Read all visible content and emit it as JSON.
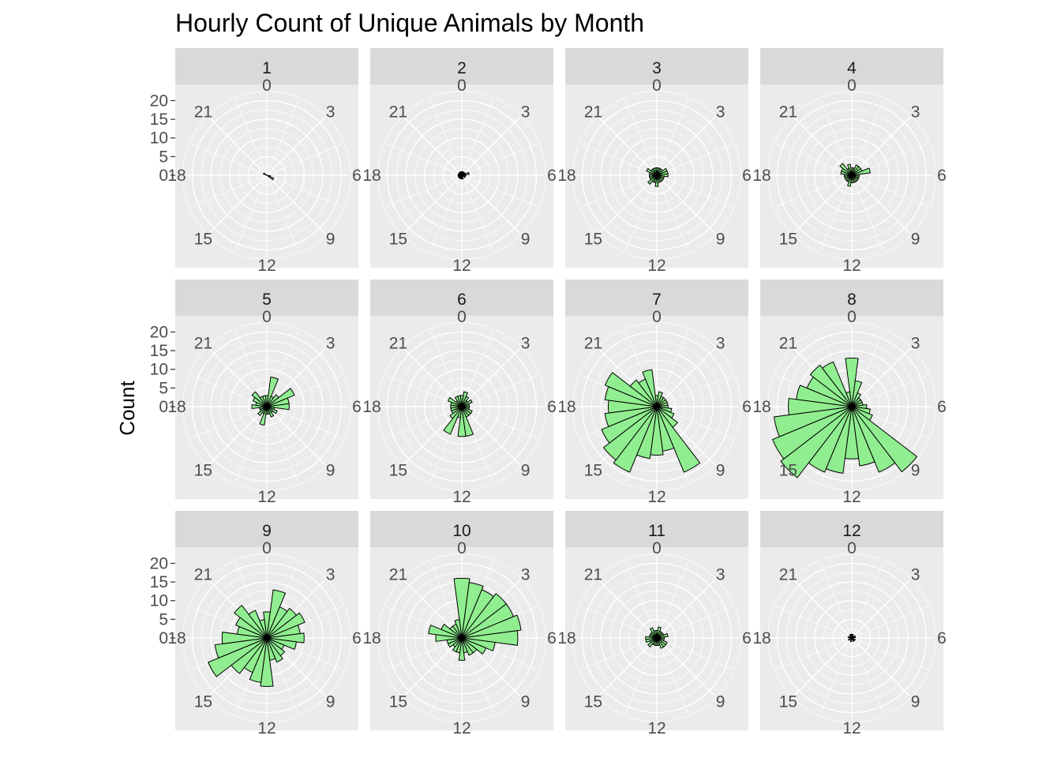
{
  "chart_data": {
    "type": "polar-bar",
    "title": "Hourly Count of Unique Animals by Month",
    "ylabel": "Count",
    "xlabel": "",
    "hour_labels": [
      "0",
      "3",
      "6",
      "9",
      "12",
      "15",
      "18",
      "21"
    ],
    "y_ticks": [
      "0",
      "5",
      "10",
      "15",
      "20"
    ],
    "ylim": [
      0,
      22
    ],
    "colors": {
      "fill": "#90EE90",
      "stroke": "#000000",
      "panel": "#EBEBEB",
      "strip": "#D9D9D9",
      "grid": "#FFFFFF"
    },
    "hours": [
      0,
      1,
      2,
      3,
      4,
      5,
      6,
      7,
      8,
      9,
      10,
      11,
      12,
      13,
      14,
      15,
      16,
      17,
      18,
      19,
      20,
      21,
      22,
      23
    ],
    "panels": [
      {
        "month": "1",
        "values": [
          0,
          0,
          0,
          0,
          0,
          0,
          0,
          1,
          2,
          0,
          0,
          0,
          0,
          0,
          0,
          0,
          0,
          0,
          0,
          0,
          1,
          0,
          0,
          0
        ]
      },
      {
        "month": "2",
        "values": [
          1,
          1,
          0,
          1,
          1,
          2,
          1,
          1,
          1,
          0,
          0,
          1,
          0,
          1,
          0,
          1,
          1,
          1,
          1,
          0,
          1,
          0,
          1,
          0
        ]
      },
      {
        "month": "3",
        "values": [
          2,
          2,
          2,
          2,
          3,
          3,
          3,
          2,
          2,
          2,
          2,
          2,
          3,
          2,
          2,
          3,
          2,
          2,
          2,
          2,
          3,
          2,
          2,
          2
        ]
      },
      {
        "month": "4",
        "values": [
          2,
          2,
          3,
          3,
          3,
          5,
          2,
          2,
          2,
          2,
          2,
          2,
          2,
          3,
          2,
          2,
          2,
          2,
          2,
          3,
          3,
          4,
          2,
          3
        ]
      },
      {
        "month": "5",
        "values": [
          3,
          8,
          3,
          4,
          8,
          6,
          6,
          2,
          3,
          2,
          3,
          2,
          2,
          5,
          2,
          3,
          2,
          2,
          4,
          3,
          4,
          5,
          3,
          3
        ]
      },
      {
        "month": "6",
        "values": [
          3,
          4,
          3,
          2,
          3,
          2,
          2,
          2,
          3,
          3,
          3,
          8,
          8,
          3,
          8,
          4,
          3,
          3,
          3,
          3,
          4,
          2,
          3,
          3
        ]
      },
      {
        "month": "7",
        "values": [
          3,
          4,
          3,
          3,
          3,
          3,
          3,
          4,
          5,
          7,
          19,
          12,
          13,
          14,
          19,
          18,
          16,
          14,
          13,
          14,
          15,
          9,
          8,
          10
        ]
      },
      {
        "month": "8",
        "values": [
          13,
          7,
          4,
          3,
          3,
          3,
          4,
          5,
          6,
          22,
          19,
          16,
          14,
          18,
          19,
          24,
          23,
          21,
          17,
          15,
          13,
          14,
          13,
          4
        ]
      },
      {
        "month": "9",
        "values": [
          7,
          13,
          9,
          10,
          11,
          9,
          10,
          8,
          5,
          6,
          7,
          6,
          13,
          12,
          10,
          12,
          17,
          14,
          12,
          8,
          9,
          11,
          8,
          5
        ]
      },
      {
        "month": "10",
        "values": [
          16,
          15,
          14,
          15,
          15,
          16,
          15,
          9,
          7,
          5,
          5,
          4,
          6,
          4,
          4,
          3,
          4,
          4,
          7,
          9,
          6,
          4,
          4,
          5
        ]
      },
      {
        "month": "11",
        "values": [
          2,
          3,
          2,
          2,
          2,
          3,
          2,
          2,
          3,
          3,
          3,
          2,
          2,
          2,
          2,
          3,
          2,
          3,
          3,
          2,
          2,
          2,
          3,
          2
        ]
      },
      {
        "month": "12",
        "values": [
          1,
          1,
          0,
          0,
          1,
          1,
          0,
          0,
          1,
          0,
          1,
          0,
          0,
          1,
          0,
          0,
          1,
          0,
          0,
          1,
          0,
          0,
          1,
          1
        ]
      }
    ]
  }
}
